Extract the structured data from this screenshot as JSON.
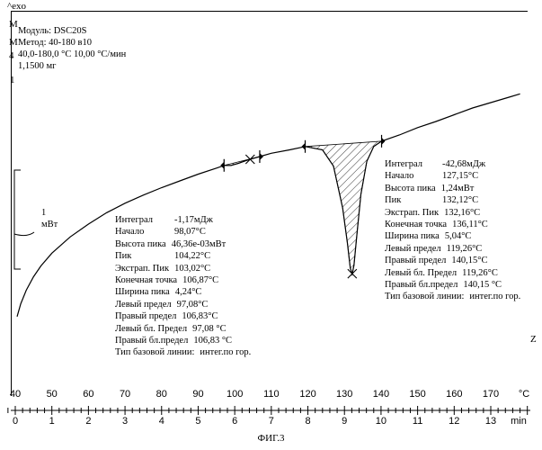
{
  "exo_label": "^exo",
  "meta": {
    "module": "Модуль:  DSC20S",
    "method": "Метод:  40-180 в10",
    "range": "40,0-180,0 °C 10,00 °C/мин",
    "mass": "1,1500 мг"
  },
  "side_glyphs": [
    "M",
    "M",
    "4",
    "1"
  ],
  "end_glyph": "Z",
  "scale_bar": {
    "value": "1",
    "unit": "мВт"
  },
  "peak1": {
    "rows": [
      {
        "label": "Интеграл",
        "value": "-1,17мДж"
      },
      {
        "label": "Начало",
        "value": "98,07°C"
      },
      {
        "label": "Высота пика",
        "value": "46,36е-03мВт"
      },
      {
        "label": "Пик",
        "value": "104,22°C"
      },
      {
        "label": "Экстрап. Пик",
        "value": "103,02°C"
      },
      {
        "label": "Конечная точка",
        "value": "106,87°C"
      },
      {
        "label": "Ширина пика",
        "value": "4,24°C"
      },
      {
        "label": "Левый предел",
        "value": "97,08°C"
      },
      {
        "label": "Правый предел",
        "value": "106,83°C"
      },
      {
        "label": "Левый бл. Предел",
        "value": "97,08 °C"
      },
      {
        "label": "Правый бл.предел",
        "value": "106,83 °C"
      },
      {
        "label": "Тип базовой линии:",
        "value": "интег.по гор."
      }
    ]
  },
  "peak2": {
    "rows": [
      {
        "label": "Интеграл",
        "value": "-42,68мДж"
      },
      {
        "label": "Начало",
        "value": "127,15°C"
      },
      {
        "label": "Высота пика",
        "value": "1,24мВт"
      },
      {
        "label": "Пик",
        "value": "132,12°C"
      },
      {
        "label": "Экстрап. Пик",
        "value": "132,16°C"
      },
      {
        "label": "Конечная точка",
        "value": "136,11°C"
      },
      {
        "label": "Ширина пика",
        "value": "5,04°C"
      },
      {
        "label": "Левый предел",
        "value": "119,26°C"
      },
      {
        "label": "Правый предел",
        "value": "140,15°C"
      },
      {
        "label": "Левый бл. Предел",
        "value": "119,26°C"
      },
      {
        "label": "Правый бл.предел",
        "value": "140,15 °C"
      },
      {
        "label": "Тип базовой линии:",
        "value": "интег.по гор."
      }
    ]
  },
  "chart_data": {
    "type": "line",
    "temp_axis": {
      "unit": "°C",
      "ticks": [
        40,
        50,
        60,
        70,
        80,
        90,
        100,
        110,
        120,
        130,
        140,
        150,
        160,
        170
      ]
    },
    "time_axis": {
      "unit": "min",
      "ticks": [
        0,
        1,
        2,
        3,
        4,
        5,
        6,
        7,
        8,
        9,
        10,
        11,
        12,
        13
      ]
    },
    "series": [
      {
        "x_unit": "°C",
        "x": [
          40.5,
          41.5,
          43,
          45,
          47,
          50,
          55,
          60,
          65,
          70,
          75,
          80,
          85,
          90,
          95,
          97.1,
          99,
          101,
          103,
          104.2,
          105.5,
          106.8,
          110,
          115,
          119.3,
          124,
          127,
          129.5,
          130.8,
          131.6,
          132.1,
          132.6,
          133.4,
          134.5,
          136.1,
          138,
          140.2,
          145,
          150,
          155,
          160,
          165,
          170,
          175,
          178
        ],
        "y_unit": "мВт (rel.)",
        "y": [
          -1.25,
          -1.06,
          -0.86,
          -0.66,
          -0.5,
          -0.31,
          -0.07,
          0.12,
          0.29,
          0.43,
          0.55,
          0.66,
          0.76,
          0.86,
          0.95,
          0.99,
          0.99,
          1.02,
          1.06,
          1.08,
          1.1,
          1.12,
          1.17,
          1.22,
          1.27,
          1.22,
          0.98,
          0.36,
          -0.16,
          -0.53,
          -0.62,
          -0.49,
          -0.03,
          0.56,
          1.05,
          1.27,
          1.35,
          1.44,
          1.55,
          1.64,
          1.74,
          1.84,
          1.92,
          2.0,
          2.05
        ]
      }
    ],
    "peaks": [
      {
        "left_limit": 97.08,
        "right_limit": 106.83,
        "peak": 104.22
      },
      {
        "left_limit": 119.26,
        "right_limit": 140.15,
        "peak": 132.12
      }
    ]
  },
  "caption": "ФИГ.3"
}
